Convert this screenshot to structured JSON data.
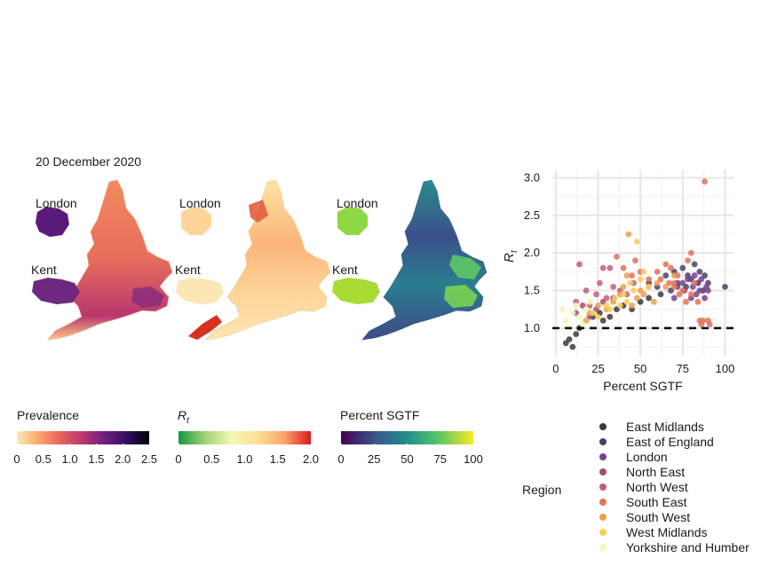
{
  "date_title": "20 December 2020",
  "maps": [
    {
      "id": "prevalence",
      "labels": {
        "london": "London",
        "kent": "Kent"
      }
    },
    {
      "id": "rt",
      "labels": {
        "london": "London",
        "kent": "Kent"
      }
    },
    {
      "id": "sgtf",
      "labels": {
        "london": "London",
        "kent": "Kent"
      }
    }
  ],
  "colorbars": [
    {
      "title": "Prevalence",
      "ticks": [
        "0",
        "0.5",
        "1.0",
        "1.5",
        "2.0",
        "2.5"
      ],
      "colors": [
        "#fdebb5",
        "#fca46d",
        "#e8605e",
        "#b6376e",
        "#6d1d80",
        "#31105f",
        "#000004"
      ]
    },
    {
      "title": "R",
      "subscript": "t",
      "ticks": [
        "0",
        "0.5",
        "1.0",
        "1.5",
        "2.0"
      ],
      "colors": [
        "#1a9641",
        "#9fd374",
        "#f3f7b4",
        "#fdde93",
        "#fca46d",
        "#d7191c"
      ]
    },
    {
      "title": "Percent SGTF",
      "ticks": [
        "0",
        "25",
        "50",
        "75",
        "100"
      ],
      "colors": [
        "#440154",
        "#3b528b",
        "#21908c",
        "#5dc863",
        "#fde725"
      ]
    }
  ],
  "chart_data": {
    "type": "scatter",
    "xlabel": "Percent SGTF",
    "ylabel": "R",
    "ylabel_subscript": "t",
    "xlim": [
      -2,
      105
    ],
    "ylim": [
      0.62,
      3.1
    ],
    "xticks": [
      0,
      25,
      50,
      75,
      100
    ],
    "yticks": [
      1.0,
      1.5,
      2.0,
      2.5,
      3.0
    ],
    "xtick_labels": [
      "0",
      "25",
      "50",
      "75",
      "100"
    ],
    "ytick_labels": [
      "1.0",
      "1.5",
      "2.0",
      "2.5",
      "3.0"
    ],
    "reference_line": {
      "y": 1.0,
      "style": "dashed"
    },
    "grid": true,
    "legend": {
      "title": "Region",
      "placement": "right",
      "entries": [
        {
          "name": "East Midlands",
          "color": "#3a3a3a"
        },
        {
          "name": "East of England",
          "color": "#4a3f6b"
        },
        {
          "name": "London",
          "color": "#7a3f8c"
        },
        {
          "name": "North East",
          "color": "#a44a7e"
        },
        {
          "name": "North West",
          "color": "#c45c7d"
        },
        {
          "name": "South East",
          "color": "#df7358"
        },
        {
          "name": "South West",
          "color": "#ef9c4b"
        },
        {
          "name": "West Midlands",
          "color": "#f6cf55"
        },
        {
          "name": "Yorkshire and Humber",
          "color": "#f8f3b8"
        }
      ]
    },
    "series": [
      {
        "name": "East Midlands",
        "points": [
          [
            6,
            0.8
          ],
          [
            8,
            0.85
          ],
          [
            10,
            0.75
          ],
          [
            12,
            0.92
          ],
          [
            14,
            1.0
          ],
          [
            18,
            1.1
          ],
          [
            22,
            1.15
          ],
          [
            26,
            1.2
          ],
          [
            28,
            1.1
          ],
          [
            32,
            1.15
          ],
          [
            36,
            1.25
          ],
          [
            40,
            1.3
          ],
          [
            45,
            1.25
          ],
          [
            50,
            1.35
          ],
          [
            55,
            1.4
          ],
          [
            62,
            1.45
          ]
        ]
      },
      {
        "name": "East of England",
        "points": [
          [
            55,
            1.6
          ],
          [
            60,
            1.55
          ],
          [
            65,
            1.7
          ],
          [
            68,
            1.5
          ],
          [
            70,
            1.75
          ],
          [
            72,
            1.6
          ],
          [
            75,
            1.8
          ],
          [
            77,
            1.55
          ],
          [
            78,
            1.7
          ],
          [
            80,
            1.65
          ],
          [
            82,
            1.85
          ],
          [
            84,
            1.6
          ],
          [
            85,
            1.75
          ],
          [
            87,
            1.5
          ],
          [
            88,
            1.7
          ],
          [
            90,
            1.6
          ],
          [
            100,
            1.55
          ]
        ]
      },
      {
        "name": "London",
        "points": [
          [
            70,
            1.4
          ],
          [
            72,
            1.55
          ],
          [
            75,
            1.6
          ],
          [
            76,
            1.5
          ],
          [
            78,
            1.65
          ],
          [
            80,
            1.4
          ],
          [
            81,
            1.55
          ],
          [
            82,
            1.7
          ],
          [
            83,
            1.45
          ],
          [
            84,
            1.6
          ],
          [
            85,
            1.5
          ],
          [
            86,
            1.65
          ],
          [
            88,
            1.4
          ],
          [
            89,
            1.55
          ],
          [
            90,
            1.5
          ]
        ]
      },
      {
        "name": "North East",
        "points": [
          [
            12,
            1.2
          ],
          [
            16,
            1.3
          ],
          [
            20,
            1.15
          ],
          [
            24,
            1.25
          ],
          [
            28,
            1.35
          ],
          [
            34,
            1.4
          ]
        ]
      },
      {
        "name": "North West",
        "points": [
          [
            12,
            1.35
          ],
          [
            14,
            1.85
          ],
          [
            18,
            1.5
          ],
          [
            20,
            1.3
          ],
          [
            24,
            1.45
          ],
          [
            26,
            1.6
          ],
          [
            28,
            1.8
          ],
          [
            30,
            1.4
          ],
          [
            32,
            1.8
          ],
          [
            34,
            1.55
          ],
          [
            38,
            1.5
          ],
          [
            42,
            1.45
          ],
          [
            46,
            1.6
          ]
        ]
      },
      {
        "name": "South East",
        "points": [
          [
            40,
            1.8
          ],
          [
            45,
            1.7
          ],
          [
            50,
            1.75
          ],
          [
            55,
            1.65
          ],
          [
            60,
            1.75
          ],
          [
            65,
            1.85
          ],
          [
            68,
            1.8
          ],
          [
            70,
            1.6
          ],
          [
            72,
            1.7
          ],
          [
            75,
            1.5
          ],
          [
            78,
            1.9
          ],
          [
            80,
            2.0
          ],
          [
            82,
            1.6
          ],
          [
            84,
            1.35
          ],
          [
            85,
            1.1
          ],
          [
            86,
            1.05
          ],
          [
            87,
            1.1
          ],
          [
            88,
            2.95
          ],
          [
            90,
            1.1
          ],
          [
            91,
            1.05
          ],
          [
            80,
            1.45
          ],
          [
            77,
            1.35
          ],
          [
            73,
            1.45
          ],
          [
            70,
            1.55
          ],
          [
            67,
            1.6
          ],
          [
            62,
            1.65
          ],
          [
            47,
            1.9
          ],
          [
            36,
            1.95
          ]
        ]
      },
      {
        "name": "South West",
        "points": [
          [
            20,
            1.2
          ],
          [
            25,
            1.3
          ],
          [
            30,
            1.25
          ],
          [
            34,
            1.35
          ],
          [
            38,
            1.45
          ],
          [
            40,
            1.55
          ],
          [
            42,
            1.7
          ],
          [
            43,
            2.25
          ],
          [
            45,
            1.3
          ],
          [
            48,
            1.4
          ],
          [
            50,
            1.5
          ],
          [
            52,
            1.45
          ],
          [
            55,
            1.55
          ],
          [
            58,
            1.35
          ],
          [
            60,
            1.6
          ],
          [
            65,
            1.55
          ],
          [
            70,
            1.7
          ]
        ]
      },
      {
        "name": "West Midlands",
        "points": [
          [
            18,
            1.1
          ],
          [
            22,
            1.2
          ],
          [
            25,
            1.15
          ],
          [
            30,
            1.3
          ],
          [
            32,
            1.25
          ],
          [
            35,
            1.4
          ],
          [
            38,
            1.3
          ],
          [
            40,
            1.45
          ],
          [
            42,
            1.35
          ],
          [
            44,
            1.6
          ],
          [
            46,
            1.5
          ],
          [
            48,
            2.15
          ],
          [
            50,
            1.65
          ],
          [
            52,
            1.75
          ],
          [
            55,
            1.55
          ]
        ]
      },
      {
        "name": "Yorkshire and Humber",
        "points": [
          [
            4,
            1.25
          ],
          [
            6,
            1.1
          ],
          [
            8,
            1.0
          ],
          [
            10,
            1.2
          ],
          [
            12,
            1.3
          ],
          [
            14,
            1.15
          ],
          [
            16,
            1.05
          ],
          [
            18,
            1.25
          ],
          [
            20,
            1.35
          ],
          [
            22,
            1.0
          ]
        ]
      }
    ]
  }
}
